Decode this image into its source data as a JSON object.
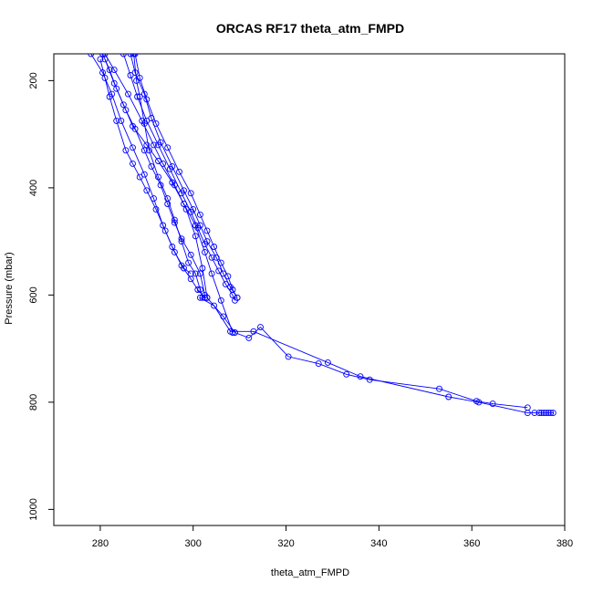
{
  "chart_data": {
    "type": "scatter",
    "title": "ORCAS RF17 theta_atm_FMPD",
    "xlabel": "theta_atm_FMPD",
    "ylabel": "Pressure (mbar)",
    "xlim": [
      270,
      380
    ],
    "ylim": [
      1030,
      150
    ],
    "y_inverted": true,
    "x_ticks": [
      280,
      300,
      320,
      340,
      360,
      380
    ],
    "y_ticks": [
      200,
      400,
      600,
      800,
      1000
    ],
    "series_color": "#0000ff",
    "marker": "open-circle",
    "grid": false,
    "legend": false,
    "series": [
      {
        "x": [
          287.2,
          287.8,
          288.5,
          289.5,
          290.5,
          292.5,
          294.5,
          296.0,
          297.5,
          299.0,
          300.5,
          301.5,
          302.0
        ],
        "y": [
          150,
          200,
          230,
          280,
          330,
          380,
          420,
          460,
          500,
          540,
          560,
          590,
          605
        ]
      },
      {
        "x": [
          278.0,
          280.5,
          282.5,
          284.5,
          287.0,
          289.5,
          291.5,
          293.5,
          295.5,
          297.5,
          299.5,
          301.0,
          302.5
        ],
        "y": [
          150,
          185,
          225,
          275,
          325,
          375,
          420,
          470,
          510,
          545,
          570,
          590,
          605
        ]
      },
      {
        "x": [
          286.5,
          287.5,
          289.5,
          291.0,
          293.0,
          295.5,
          298.0,
          300.0,
          301.5,
          303.0,
          305.0,
          306.5,
          308.0,
          309.5
        ],
        "y": [
          150,
          185,
          225,
          270,
          315,
          360,
          405,
          440,
          470,
          500,
          530,
          560,
          585,
          605
        ]
      },
      {
        "x": [
          287.5,
          288.5,
          290.0,
          292.0,
          294.5,
          297.0,
          299.5,
          301.5,
          303.0,
          304.5,
          306.0,
          307.5,
          308.5,
          309.5
        ],
        "y": [
          150,
          195,
          235,
          280,
          325,
          370,
          410,
          450,
          480,
          510,
          540,
          565,
          590,
          605
        ]
      },
      {
        "x": [
          285.0,
          286.5,
          288.0,
          290.0,
          292.5,
          295.0,
          297.5,
          299.5,
          301.0,
          302.5,
          304.0,
          305.5,
          307.0,
          308.5,
          309.0
        ],
        "y": [
          150,
          190,
          230,
          275,
          320,
          365,
          410,
          445,
          475,
          505,
          530,
          555,
          580,
          600,
          610
        ]
      },
      {
        "x": [
          280.0,
          281.0,
          282.0,
          283.5,
          285.5,
          287.0,
          288.5,
          290.0,
          292.0,
          294.0,
          296.0,
          298.0,
          299.5
        ],
        "y": [
          160,
          195,
          230,
          275,
          330,
          355,
          380,
          405,
          440,
          480,
          520,
          550,
          560
        ]
      },
      {
        "x": [
          280.5,
          282.0,
          283.5,
          285.5,
          287.5,
          289.5,
          291.0,
          293.0,
          294.5,
          296.0,
          297.5,
          299.5,
          301.5,
          302.5
        ],
        "y": [
          150,
          180,
          215,
          255,
          290,
          330,
          360,
          395,
          430,
          465,
          495,
          525,
          560,
          600
        ]
      },
      {
        "x": [
          281.0,
          283.0,
          286.0,
          289.0,
          291.5,
          293.5,
          296.0,
          298.5,
          300.5,
          302.0,
          303.0
        ],
        "y": [
          150,
          180,
          225,
          275,
          320,
          355,
          395,
          440,
          490,
          550,
          605
        ]
      },
      {
        "x": [
          281.0,
          283.0,
          285.0,
          287.0,
          290.0,
          292.5,
          295.5,
          298.0,
          300.5,
          302.5,
          304.0,
          306.0,
          308.5
        ],
        "y": [
          160,
          205,
          245,
          285,
          320,
          350,
          390,
          430,
          470,
          520,
          560,
          610,
          670
        ]
      },
      {
        "x": [
          303.0,
          306.5,
          309.0,
          312.0,
          314.5,
          320.5,
          327.0,
          333.0,
          338.0,
          353.0,
          361.0,
          364.5,
          372.0
        ],
        "y": [
          605,
          640,
          670,
          680,
          660,
          715,
          728,
          748,
          758,
          775,
          798,
          803,
          810
        ]
      },
      {
        "x": [
          301.5,
          304.5,
          308.0,
          313.0,
          329.0,
          336.0,
          355.0,
          361.5,
          372.0,
          373.5,
          374.5,
          375.0,
          375.5,
          376.0,
          376.5,
          377.0,
          377.5
        ],
        "y": [
          605,
          620,
          668,
          668,
          726,
          752,
          790,
          800,
          820,
          820,
          820,
          820,
          820,
          820,
          820,
          820,
          820
        ]
      }
    ]
  }
}
